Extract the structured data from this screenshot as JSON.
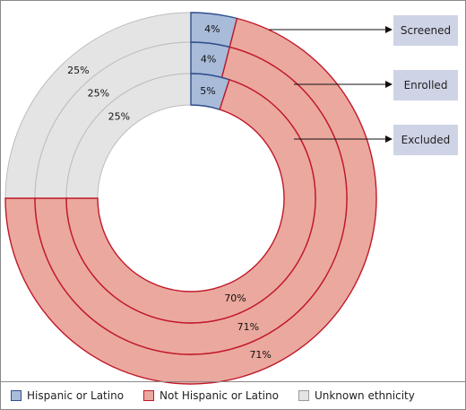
{
  "chart_data": {
    "type": "donut",
    "rings": [
      {
        "name": "Screened",
        "values": [
          4,
          71,
          25
        ],
        "labels": [
          "4%",
          "71%",
          "25%"
        ]
      },
      {
        "name": "Enrolled",
        "values": [
          4,
          71,
          25
        ],
        "labels": [
          "4%",
          "71%",
          "25%"
        ]
      },
      {
        "name": "Excluded",
        "values": [
          5,
          70,
          25
        ],
        "labels": [
          "5%",
          "70%",
          "25%"
        ]
      }
    ],
    "categories": [
      "Hispanic or Latino",
      "Not Hispanic or Latino",
      "Unknown ethnicity"
    ],
    "colors": {
      "Hispanic or Latino": "#a8bbd9",
      "Not Hispanic or Latino": "#eba89e",
      "Unknown ethnicity": "#e4e4e4"
    },
    "edge_colors": {
      "Hispanic or Latino": "#2f4e8c",
      "Not Hispanic or Latino": "#c0182a",
      "Unknown ethnicity": "#bdbdbd"
    },
    "legend": [
      {
        "label": "Hispanic or Latino",
        "color": "#a8bbd9"
      },
      {
        "label": "Not Hispanic or Latino",
        "color": "#eba89e"
      },
      {
        "label": "Unknown ethnicity",
        "color": "#e4e4e4"
      }
    ],
    "ring_labels": [
      "Screened",
      "Enrolled",
      "Excluded"
    ],
    "legend_position": "bottom"
  }
}
